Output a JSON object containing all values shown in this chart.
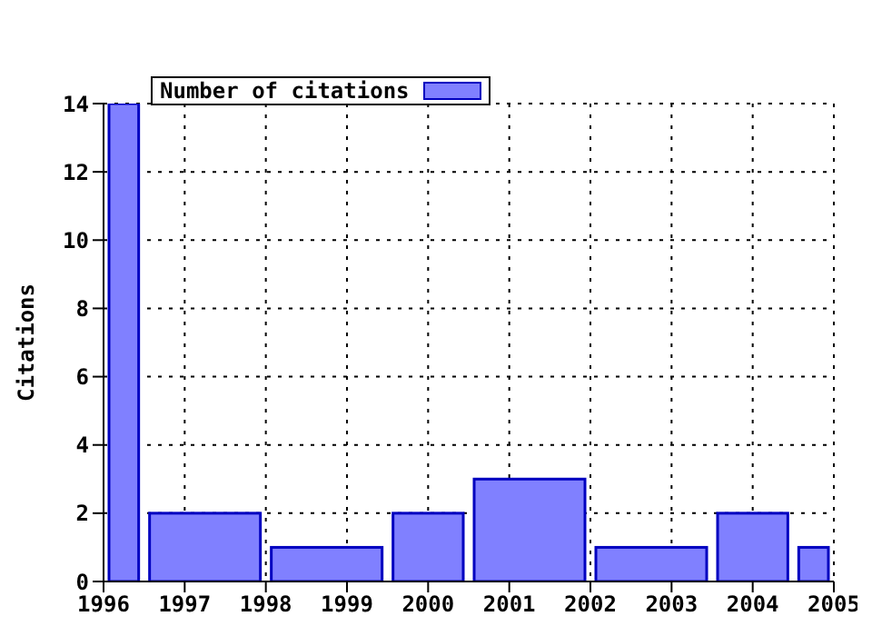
{
  "chart_data": {
    "type": "histogram",
    "ylabel": "Citations",
    "bins": [
      1996,
      1996.5,
      1998,
      1999.5,
      2000.5,
      2002,
      2003.5,
      2004.5,
      2005
    ],
    "series": [
      {
        "name": "Number of citations",
        "color": "#8080ff",
        "values": [
          14,
          2,
          1,
          2,
          3,
          1,
          2,
          1
        ]
      }
    ],
    "xlim": [
      1996,
      2005
    ],
    "xticks": [
      1996,
      1997,
      1998,
      1999,
      2000,
      2001,
      2002,
      2003,
      2004,
      2005
    ],
    "ylim": [
      0,
      14
    ],
    "yticks": [
      0,
      2,
      4,
      6,
      8,
      10,
      12,
      14
    ],
    "grid": true,
    "legend": "top left"
  }
}
